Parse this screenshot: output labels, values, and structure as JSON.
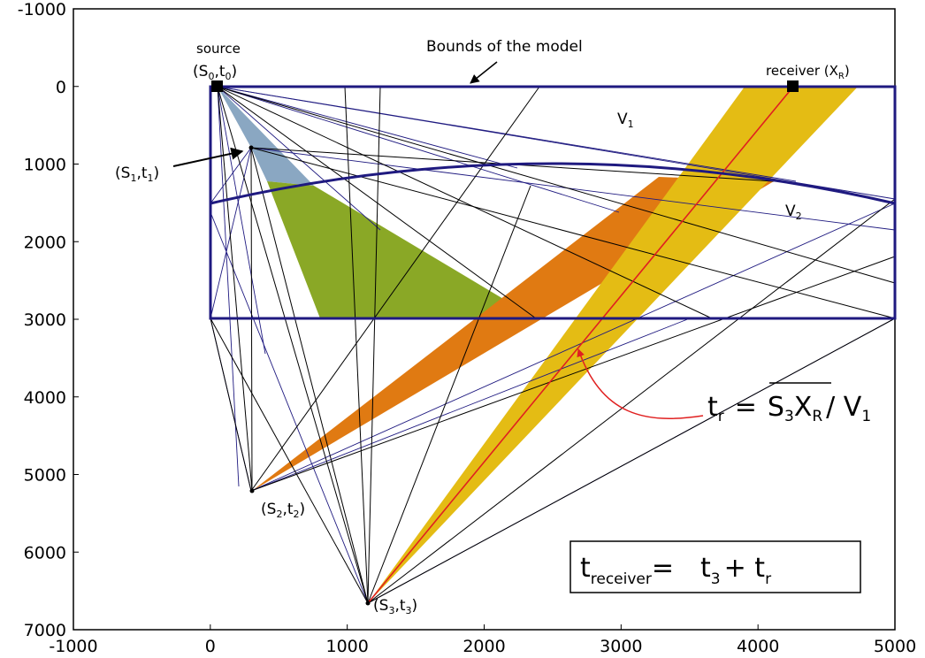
{
  "axes": {
    "x_ticks": [
      "-1000",
      "0",
      "1000",
      "2000",
      "3000",
      "4000",
      "5000"
    ],
    "y_ticks": [
      "-1000",
      "0",
      "1000",
      "2000",
      "3000",
      "4000",
      "5000",
      "6000",
      "7000"
    ],
    "xlim": [
      -1000,
      5000
    ],
    "ylim": [
      -1000,
      7000
    ],
    "y_inverted": true
  },
  "labels": {
    "source": "source",
    "model_bounds": "Bounds of the model",
    "receiver_text": "receiver (X",
    "receiver_sub": "R",
    "receiver_close": ")",
    "s0_S": "(S",
    "s0_sub": "0",
    "s0_t": ",t",
    "s0_tsub": "0",
    "s0_close": ")",
    "s1_S": "(S",
    "s1_sub": "1",
    "s1_t": ",t",
    "s1_tsub": "1",
    "s1_close": ")",
    "s2_S": "(S",
    "s2_sub": "2",
    "s2_t": ",t",
    "s2_tsub": "2",
    "s2_close": ")",
    "s3_S": "(S",
    "s3_sub": "3",
    "s3_t": ",t",
    "s3_tsub": "3",
    "s3_close": ")",
    "v1": "V",
    "v1_sub": "1",
    "v2": "V",
    "v2_sub": "2"
  },
  "equations": {
    "tr_t": "t",
    "tr_sub": "r",
    "tr_eq": "=",
    "tr_S": "S",
    "tr_S_sub": "3",
    "tr_X": "X",
    "tr_X_sub": "R",
    "tr_div": "/ V",
    "tr_div_sub": "1",
    "total_t": "t",
    "total_sub": "receiver",
    "total_eq": "=",
    "total_t3": "t",
    "total_t3_sub": "3",
    "total_plus": "+ t",
    "total_r_sub": "r"
  },
  "colors": {
    "model_border": "#1f1a80",
    "thin_blue_rays": "#1f1a80",
    "rays": "#000000",
    "light_blue_fill": "#8aa7c2",
    "green_fill": "#8aa826",
    "orange_fill": "#e07a12",
    "yellow_fill": "#e4bc14",
    "red_ray": "#e02020"
  }
}
